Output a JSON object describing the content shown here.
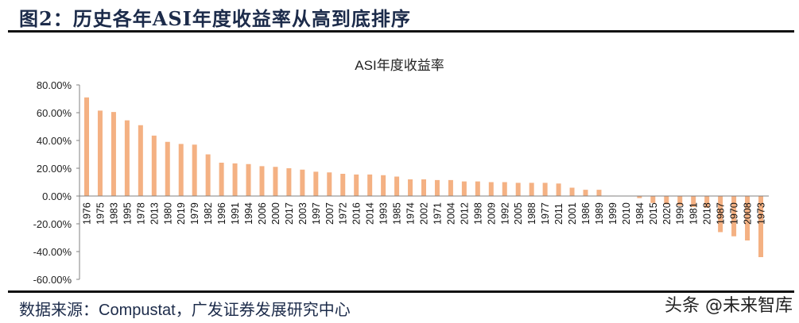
{
  "header": {
    "figure_title": "图2：历史各年ASI年度收益率从高到底排序"
  },
  "footer": {
    "source_label": "数据来源：",
    "source_en": "Compustat",
    "source_rest": "，广发证券发展研究中心",
    "watermark": "头条 @未来智库"
  },
  "colors": {
    "bar": "#F4B183",
    "axis": "#808080",
    "title_text": "#1c2b4a"
  },
  "chart_data": {
    "type": "bar",
    "title": "ASI年度收益率",
    "xlabel": "",
    "ylabel": "",
    "ylim": [
      -0.6,
      0.8
    ],
    "yticks": [
      0.8,
      0.6,
      0.4,
      0.2,
      0.0,
      -0.2,
      -0.4,
      -0.6
    ],
    "ytick_labels": [
      "80.00%",
      "60.00%",
      "40.00%",
      "20.00%",
      "0.00%",
      "-20.00%",
      "-40.00%",
      "-60.00%"
    ],
    "grid": false,
    "legend": null,
    "categories": [
      "1976",
      "1975",
      "1983",
      "1995",
      "1978",
      "2013",
      "1980",
      "2019",
      "1979",
      "1982",
      "1996",
      "1991",
      "1994",
      "2006",
      "2000",
      "2017",
      "2003",
      "1997",
      "2007",
      "1972",
      "2016",
      "2014",
      "1993",
      "1985",
      "1974",
      "2002",
      "1971",
      "2004",
      "2012",
      "1998",
      "2009",
      "1992",
      "2005",
      "1988",
      "1977",
      "2011",
      "2001",
      "1986",
      "1989",
      "1999",
      "2010",
      "1984",
      "2015",
      "2020",
      "1990",
      "1981",
      "2018",
      "1987",
      "1970",
      "2008",
      "1973"
    ],
    "values": [
      0.71,
      0.615,
      0.605,
      0.545,
      0.51,
      0.435,
      0.39,
      0.375,
      0.37,
      0.3,
      0.24,
      0.235,
      0.23,
      0.215,
      0.21,
      0.2,
      0.19,
      0.175,
      0.17,
      0.16,
      0.155,
      0.155,
      0.15,
      0.14,
      0.12,
      0.12,
      0.115,
      0.115,
      0.105,
      0.105,
      0.1,
      0.1,
      0.095,
      0.095,
      0.095,
      0.09,
      0.06,
      0.045,
      0.045,
      0.003,
      0.002,
      -0.015,
      -0.05,
      -0.06,
      -0.07,
      -0.08,
      -0.085,
      -0.26,
      -0.29,
      -0.32,
      -0.44
    ]
  }
}
